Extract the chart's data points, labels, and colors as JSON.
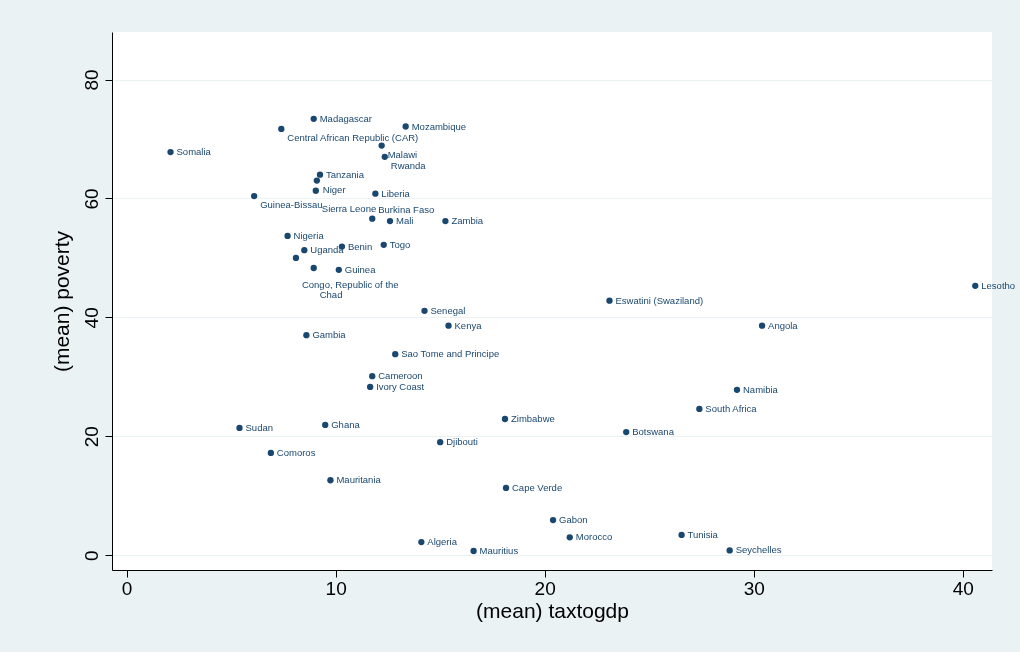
{
  "chart_data": {
    "type": "scatter",
    "xlabel": "(mean) taxtogdp",
    "ylabel": "(mean) poverty",
    "x": [
      2.1,
      8.95,
      7.4,
      13.35,
      12.2,
      12.35,
      9.25,
      9.1,
      9.05,
      11.9,
      6.1,
      11.75,
      12.6,
      15.25,
      7.7,
      8.5,
      10.3,
      12.3,
      8.1,
      8.95,
      10.15,
      14.25,
      15.4,
      8.6,
      12.85,
      11.75,
      11.65,
      23.1,
      40.6,
      30.4,
      29.2,
      27.4,
      18.1,
      23.9,
      5.4,
      9.5,
      15.0,
      6.9,
      9.75,
      18.15,
      20.4,
      26.55,
      21.2,
      14.1,
      28.85,
      16.6
    ],
    "values": [
      67.8,
      73.4,
      71.7,
      72.1,
      68.9,
      67.0,
      64.0,
      63.0,
      61.3,
      60.8,
      60.4,
      56.6,
      56.2,
      56.2,
      53.7,
      51.3,
      51.9,
      52.2,
      50.0,
      48.3,
      48.0,
      41.1,
      38.6,
      37.0,
      33.8,
      30.1,
      28.3,
      42.8,
      45.3,
      38.6,
      27.8,
      24.6,
      22.9,
      20.7,
      21.4,
      21.9,
      19.0,
      17.2,
      12.6,
      11.3,
      5.9,
      3.4,
      3.0,
      2.2,
      0.8,
      0.7
    ],
    "color": "#1a476f",
    "marker": "circle",
    "grid": "y",
    "xlim": [
      -0.7,
      41.4
    ],
    "ylim": [
      -2.5,
      88
    ],
    "xticks": [
      0,
      10,
      20,
      30,
      40
    ],
    "yticks": [
      0,
      20,
      40,
      60,
      80
    ],
    "annotations": [
      {
        "text": "Somalia",
        "x": 2.1,
        "y": 67.8
      },
      {
        "text": "Madagascar",
        "x": 8.95,
        "y": 73.4
      },
      {
        "text": "Central African Republic (CAR)",
        "x": 7.4,
        "y": 71.7
      },
      {
        "text": "Mozambique",
        "x": 13.35,
        "y": 72.1
      },
      {
        "text": "Malawi",
        "x": 12.2,
        "y": 68.9
      },
      {
        "text": "Rwanda",
        "x": 12.35,
        "y": 67.0
      },
      {
        "text": "Tanzania",
        "x": 9.25,
        "y": 64.0
      },
      {
        "text": "Niger",
        "x": 9.1,
        "y": 63.0
      },
      {
        "text": "Sierra Leone",
        "x": 9.05,
        "y": 61.3
      },
      {
        "text": "Liberia",
        "x": 11.9,
        "y": 60.8
      },
      {
        "text": "Guinea-Bissau",
        "x": 6.1,
        "y": 60.4
      },
      {
        "text": "Burkina Faso",
        "x": 11.75,
        "y": 56.6
      },
      {
        "text": "Mali",
        "x": 12.6,
        "y": 56.2
      },
      {
        "text": "Zambia",
        "x": 15.25,
        "y": 56.2
      },
      {
        "text": "Nigeria",
        "x": 7.7,
        "y": 53.7
      },
      {
        "text": "Uganda",
        "x": 8.5,
        "y": 51.3
      },
      {
        "text": "Benin",
        "x": 10.3,
        "y": 51.9
      },
      {
        "text": "Togo",
        "x": 12.3,
        "y": 52.2
      },
      {
        "text": "Congo, Republic of the",
        "x": 8.1,
        "y": 50.0
      },
      {
        "text": "Chad",
        "x": 8.95,
        "y": 48.3
      },
      {
        "text": "Guinea",
        "x": 10.15,
        "y": 48.0
      },
      {
        "text": "Senegal",
        "x": 14.25,
        "y": 41.1
      },
      {
        "text": "Kenya",
        "x": 15.4,
        "y": 38.6
      },
      {
        "text": "Gambia",
        "x": 8.6,
        "y": 37.0
      },
      {
        "text": "Sao Tome and Principe",
        "x": 12.85,
        "y": 33.8
      },
      {
        "text": "Cameroon",
        "x": 11.75,
        "y": 30.1
      },
      {
        "text": "Ivory Coast",
        "x": 11.65,
        "y": 28.3
      },
      {
        "text": "Eswatini (Swaziland)",
        "x": 23.1,
        "y": 42.8
      },
      {
        "text": "Lesotho",
        "x": 40.6,
        "y": 45.3
      },
      {
        "text": "Angola",
        "x": 30.4,
        "y": 38.6
      },
      {
        "text": "Namibia",
        "x": 29.2,
        "y": 27.8
      },
      {
        "text": "South Africa",
        "x": 27.4,
        "y": 24.6
      },
      {
        "text": "Zimbabwe",
        "x": 18.1,
        "y": 22.9
      },
      {
        "text": "Botswana",
        "x": 23.9,
        "y": 20.7
      },
      {
        "text": "Sudan",
        "x": 5.4,
        "y": 21.4
      },
      {
        "text": "Ghana",
        "x": 9.5,
        "y": 21.9
      },
      {
        "text": "Djibouti",
        "x": 15.0,
        "y": 19.0
      },
      {
        "text": "Comoros",
        "x": 6.9,
        "y": 17.2
      },
      {
        "text": "Mauritania",
        "x": 9.75,
        "y": 12.6
      },
      {
        "text": "Cape Verde",
        "x": 18.15,
        "y": 11.3
      },
      {
        "text": "Gabon",
        "x": 20.4,
        "y": 5.9
      },
      {
        "text": "Tunisia",
        "x": 26.55,
        "y": 3.4
      },
      {
        "text": "Morocco",
        "x": 21.2,
        "y": 3.0
      },
      {
        "text": "Algeria",
        "x": 14.1,
        "y": 2.2
      },
      {
        "text": "Seychelles",
        "x": 28.85,
        "y": 0.8
      },
      {
        "text": "Mauritius",
        "x": 16.6,
        "y": 0.7
      }
    ]
  }
}
